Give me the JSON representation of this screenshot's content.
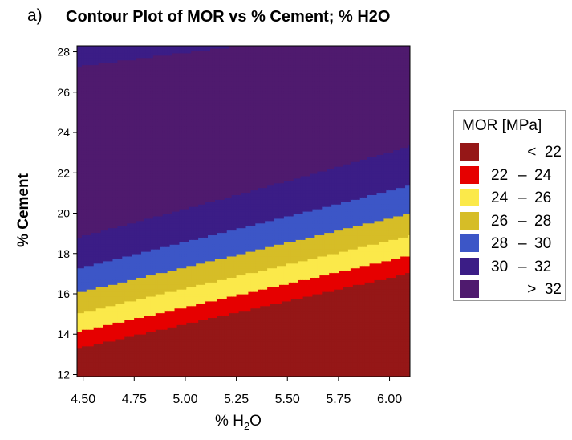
{
  "panel_label": "a)",
  "chart_data": {
    "type": "contour",
    "title": "Contour Plot of MOR vs % Cement; % H2O",
    "xlabel_main": "% H",
    "xlabel_sub": "2",
    "xlabel_tail": "O",
    "ylabel": "% Cement",
    "xlim": [
      4.47,
      6.1
    ],
    "ylim": [
      11.9,
      28.3
    ],
    "x_ticks": [
      4.5,
      4.75,
      5.0,
      5.25,
      5.5,
      5.75,
      6.0
    ],
    "x_tick_labels": [
      "4.50",
      "4.75",
      "5.00",
      "5.25",
      "5.50",
      "5.75",
      "6.00"
    ],
    "y_ticks": [
      12,
      14,
      16,
      18,
      20,
      22,
      24,
      26,
      28
    ],
    "y_tick_labels": [
      "12",
      "14",
      "16",
      "18",
      "20",
      "22",
      "24",
      "26",
      "28"
    ],
    "contour_levels": [
      22,
      24,
      26,
      28,
      30,
      32
    ],
    "legend_title": "MOR [MPa]",
    "legend_placement": "right",
    "levels": [
      {
        "range": "< 22",
        "lo": "<",
        "hi": "22",
        "color": "#951717"
      },
      {
        "range": "22 – 24",
        "lo": "22",
        "hi": "24",
        "color": "#e60000"
      },
      {
        "range": "24 – 26",
        "lo": "24",
        "hi": "26",
        "color": "#fbe94a"
      },
      {
        "range": "26 – 28",
        "lo": "26",
        "hi": "28",
        "color": "#d6bd27"
      },
      {
        "range": "28 – 30",
        "lo": "28",
        "hi": "30",
        "color": "#3c56c7"
      },
      {
        "range": "30 – 32",
        "lo": "30",
        "hi": "32",
        "color": "#3b1d86"
      },
      {
        "range": "> 32",
        "lo": ">",
        "hi": "32",
        "color": "#4f1a6e"
      }
    ]
  }
}
